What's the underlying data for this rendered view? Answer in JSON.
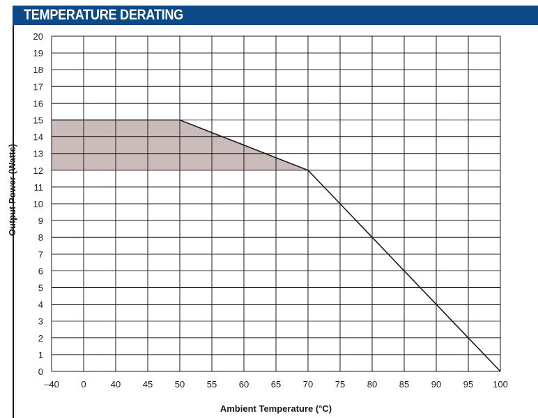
{
  "header": {
    "title": "TEMPERATURE DERATING"
  },
  "colors": {
    "title_bar": "#0b4a86",
    "title_text": "#ffffff",
    "region_fill": "#cbbcbb",
    "grid": "#1a1a1a",
    "line": "#1a1a1a"
  },
  "chart_data": {
    "type": "line",
    "title": "",
    "xlabel": "Ambient Temperature (°C)",
    "ylabel": "Output Power (Watts)",
    "x_ticks": [
      "–40",
      "0",
      "40",
      "45",
      "50",
      "55",
      "60",
      "65",
      "70",
      "75",
      "80",
      "85",
      "90",
      "95",
      "100"
    ],
    "y_ticks": [
      "0",
      "1",
      "2",
      "3",
      "4",
      "5",
      "6",
      "7",
      "8",
      "9",
      "10",
      "11",
      "12",
      "13",
      "14",
      "15",
      "16",
      "17",
      "18",
      "19",
      "20"
    ],
    "ylim": [
      0,
      20
    ],
    "grid": true,
    "legend": "none",
    "series": [
      {
        "x": [
          "–40",
          "0",
          "40",
          "45",
          "50",
          "55",
          "60",
          "65",
          "70",
          "75",
          "80",
          "85",
          "90",
          "95",
          "100"
        ],
        "y": [
          15,
          15,
          15,
          15,
          15,
          14.25,
          13.5,
          12.75,
          12,
          10,
          8,
          6,
          4,
          2,
          0
        ]
      }
    ],
    "shaded_region": {
      "x": [
        "–40",
        "0",
        "40",
        "45",
        "50",
        "55",
        "60",
        "65",
        "70"
      ],
      "upper": [
        15,
        15,
        15,
        15,
        15,
        14.25,
        13.5,
        12.75,
        12
      ],
      "lower": [
        12,
        12,
        12,
        12,
        12,
        12,
        12,
        12,
        12
      ]
    }
  }
}
